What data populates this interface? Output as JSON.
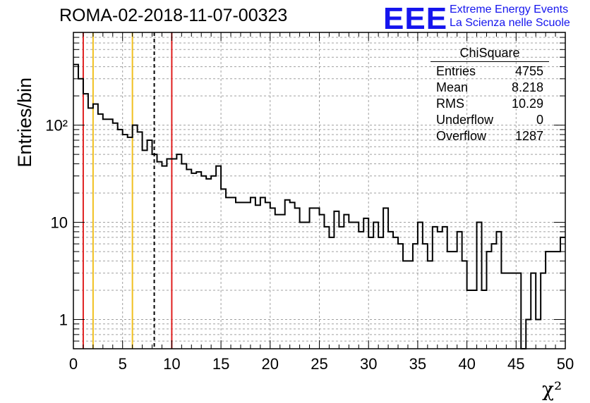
{
  "header": {
    "title": "ROMA-02-2018-11-07-00323",
    "logo_text": "EEE",
    "logo_line1": "Extreme Energy Events",
    "logo_line2": "La Scienza nelle Scuole"
  },
  "stats_box": {
    "title": "ChiSquare",
    "rows": [
      {
        "label": "Entries",
        "value": "4755"
      },
      {
        "label": "Mean",
        "value": "8.218"
      },
      {
        "label": "RMS",
        "value": "10.29"
      },
      {
        "label": "Underflow",
        "value": "0"
      },
      {
        "label": "Overflow",
        "value": "1287"
      }
    ]
  },
  "colors": {
    "histogram": "#000000",
    "red_line": "#e02020",
    "yellow_line": "#f0c020",
    "mean_line": "#000000",
    "grid": "#a0a0a0",
    "logo": "#1515ee"
  },
  "chart_data": {
    "type": "histogram",
    "xlabel": "χ²",
    "ylabel": "Entries/bin",
    "xlim": [
      0,
      50
    ],
    "ylim": [
      0.5,
      900
    ],
    "yscale": "log",
    "grid": true,
    "bin_width": 0.5,
    "x_ticks": [
      "0",
      "5",
      "10",
      "15",
      "20",
      "25",
      "30",
      "35",
      "40",
      "45",
      "50"
    ],
    "y_ticks": [
      {
        "value": 1,
        "label": "1"
      },
      {
        "value": 10,
        "label": "10"
      },
      {
        "value": 100,
        "label": "10²"
      }
    ],
    "counts": [
      420,
      300,
      210,
      150,
      165,
      130,
      115,
      115,
      105,
      90,
      80,
      75,
      100,
      85,
      55,
      70,
      50,
      42,
      38,
      45,
      45,
      50,
      40,
      35,
      32,
      33,
      30,
      28,
      30,
      38,
      22,
      18,
      18,
      16,
      16,
      16,
      18,
      15,
      18,
      16,
      14,
      12,
      12,
      17,
      16,
      14,
      10,
      10,
      14,
      14,
      12,
      9,
      7,
      13,
      9,
      12,
      10,
      10,
      8,
      11,
      7,
      10,
      7,
      14,
      8,
      7,
      6,
      4,
      4,
      6,
      10,
      6,
      4,
      9,
      8,
      9,
      5,
      5,
      8,
      4,
      2,
      2,
      10,
      2,
      5,
      6,
      8,
      3,
      3,
      3,
      3,
      0,
      1,
      3,
      1,
      3,
      5,
      5,
      5,
      7
    ],
    "vertical_lines": [
      {
        "x": 1.0,
        "color": "red"
      },
      {
        "x": 2.0,
        "color": "yellow"
      },
      {
        "x": 6.0,
        "color": "yellow"
      },
      {
        "x": 8.218,
        "color": "black-dashed"
      },
      {
        "x": 10.0,
        "color": "red"
      }
    ]
  }
}
